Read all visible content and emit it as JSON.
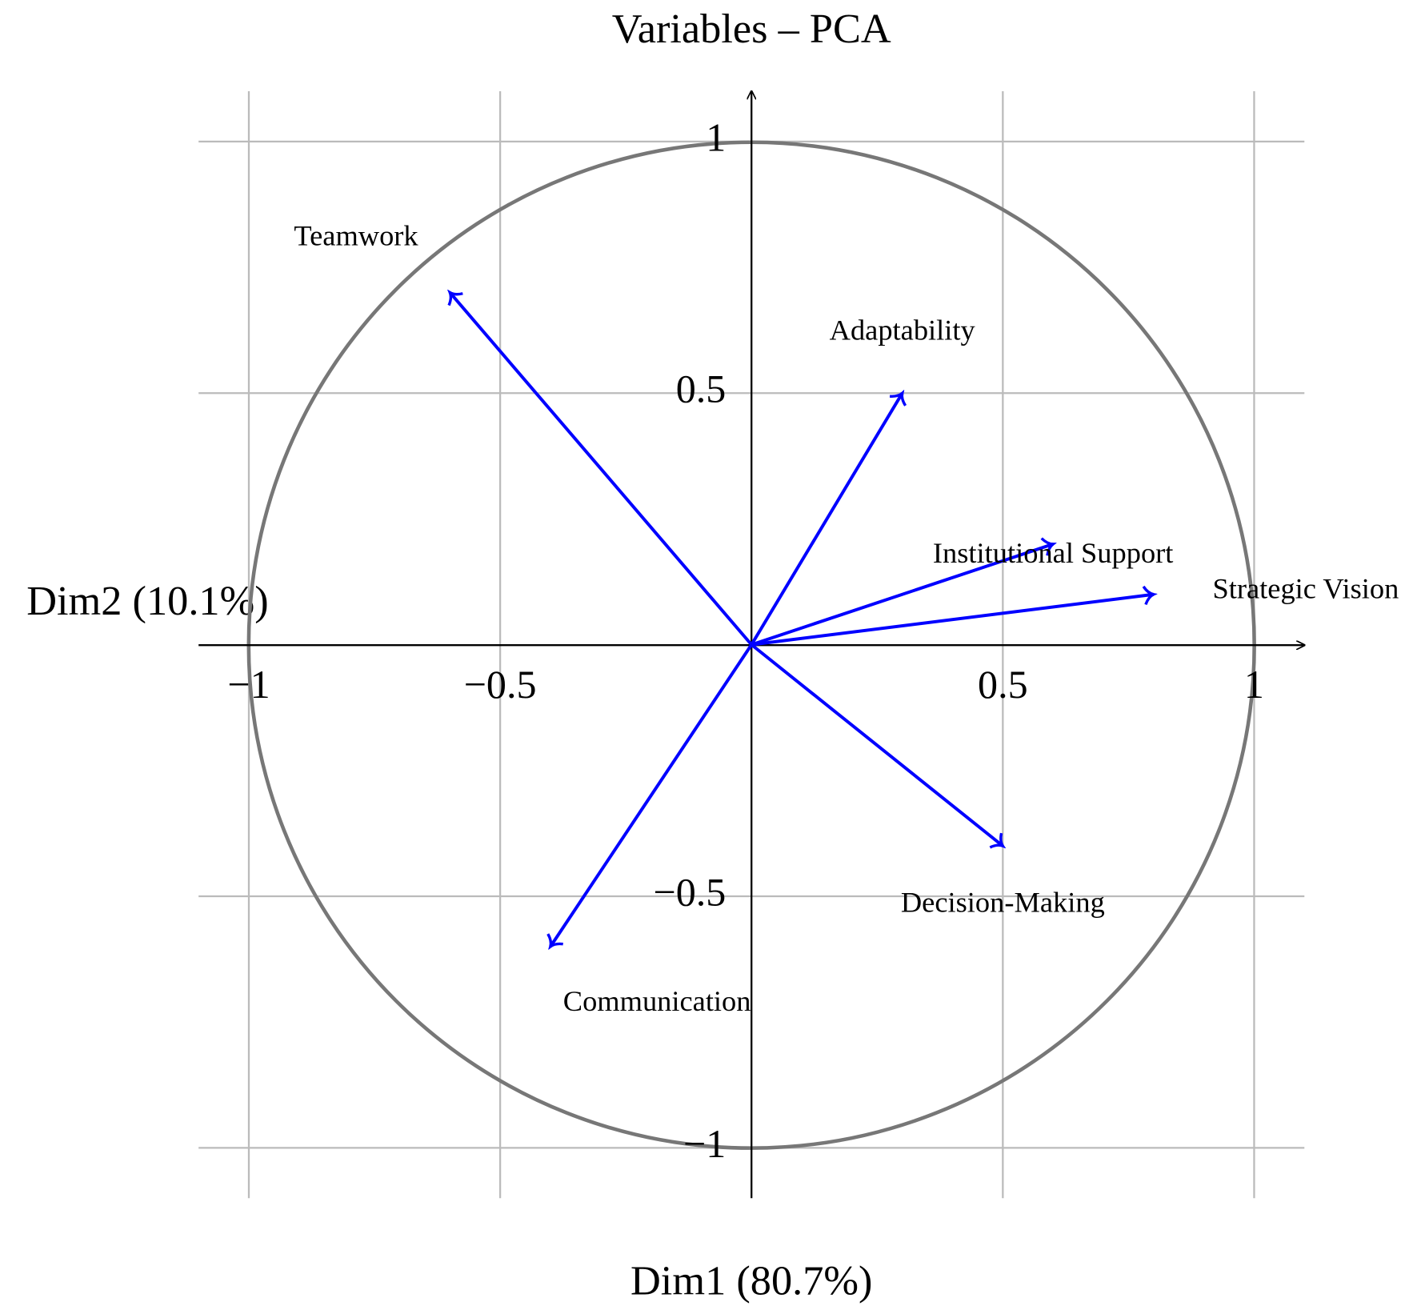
{
  "chart_data": {
    "type": "vector",
    "title": "Variables – PCA",
    "x_label": "Dim1 (80.7%)",
    "y_label": "Dim2 (10.1%)",
    "xlim": [
      -1.1,
      1.1
    ],
    "ylim": [
      -1.1,
      1.1
    ],
    "xticks": [
      {
        "value": -1,
        "label": "−1"
      },
      {
        "value": -0.5,
        "label": "−0.5"
      },
      0.5,
      1
    ],
    "yticks": [
      {
        "value": -1,
        "label": "−1"
      },
      {
        "value": -0.5,
        "label": "−0.5"
      },
      0.5,
      1
    ],
    "grid": true,
    "color": "#0000ff",
    "labels": [
      "Teamwork",
      "Adaptability",
      "Institutional Support",
      "Strategic Vision",
      "Decision-Making",
      "Communication"
    ],
    "x": [
      -0.6,
      0.3,
      0.6,
      0.8,
      0.5,
      -0.4
    ],
    "values": [
      0.7,
      0.5,
      0.2,
      0.1,
      -0.4,
      -0.6
    ]
  }
}
